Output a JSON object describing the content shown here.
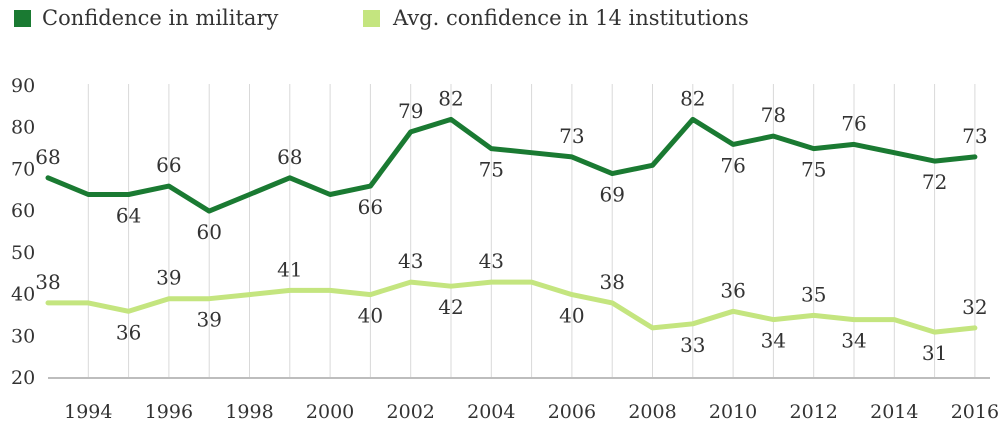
{
  "chart_data": {
    "type": "line",
    "title": "",
    "xlabel": "",
    "ylabel": "",
    "ylim": [
      20,
      90
    ],
    "yticks": [
      20,
      30,
      40,
      50,
      60,
      70,
      80,
      90
    ],
    "xticks": [
      1994,
      1996,
      1998,
      2000,
      2002,
      2004,
      2006,
      2008,
      2010,
      2012,
      2014,
      2016
    ],
    "xlim": [
      1993,
      2016.2
    ],
    "grid": "vertical",
    "legend_placement": "top-left",
    "series": [
      {
        "name": "Confidence in military",
        "color": "#1a7a32",
        "points": [
          {
            "x": 1993,
            "y": 68,
            "label": "68",
            "label_pos": "above"
          },
          {
            "x": 1994,
            "y": 64
          },
          {
            "x": 1995,
            "y": 64,
            "label": "64",
            "label_pos": "below"
          },
          {
            "x": 1996,
            "y": 66,
            "label": "66",
            "label_pos": "above"
          },
          {
            "x": 1997,
            "y": 60,
            "label": "60",
            "label_pos": "below"
          },
          {
            "x": 1998,
            "y": 64
          },
          {
            "x": 1999,
            "y": 68,
            "label": "68",
            "label_pos": "above"
          },
          {
            "x": 2000,
            "y": 64
          },
          {
            "x": 2001,
            "y": 66,
            "label": "66",
            "label_pos": "below"
          },
          {
            "x": 2002,
            "y": 79,
            "label": "79",
            "label_pos": "above"
          },
          {
            "x": 2003,
            "y": 82,
            "label": "82",
            "label_pos": "above"
          },
          {
            "x": 2004,
            "y": 75,
            "label": "75",
            "label_pos": "below"
          },
          {
            "x": 2005,
            "y": 74
          },
          {
            "x": 2006,
            "y": 73,
            "label": "73",
            "label_pos": "above"
          },
          {
            "x": 2007,
            "y": 69,
            "label": "69",
            "label_pos": "below"
          },
          {
            "x": 2008,
            "y": 71
          },
          {
            "x": 2009,
            "y": 82,
            "label": "82",
            "label_pos": "above"
          },
          {
            "x": 2010,
            "y": 76,
            "label": "76",
            "label_pos": "below"
          },
          {
            "x": 2011,
            "y": 78,
            "label": "78",
            "label_pos": "above"
          },
          {
            "x": 2012,
            "y": 75,
            "label": "75",
            "label_pos": "below"
          },
          {
            "x": 2013,
            "y": 76,
            "label": "76",
            "label_pos": "above"
          },
          {
            "x": 2014,
            "y": 74
          },
          {
            "x": 2015,
            "y": 72,
            "label": "72",
            "label_pos": "below"
          },
          {
            "x": 2016,
            "y": 73,
            "label": "73",
            "label_pos": "above"
          }
        ]
      },
      {
        "name": "Avg. confidence in 14 institutions",
        "color": "#c4e57f",
        "points": [
          {
            "x": 1993,
            "y": 38,
            "label": "38",
            "label_pos": "above"
          },
          {
            "x": 1994,
            "y": 38
          },
          {
            "x": 1995,
            "y": 36,
            "label": "36",
            "label_pos": "below"
          },
          {
            "x": 1996,
            "y": 39,
            "label": "39",
            "label_pos": "above"
          },
          {
            "x": 1997,
            "y": 39,
            "label": "39",
            "label_pos": "below"
          },
          {
            "x": 1998,
            "y": 40
          },
          {
            "x": 1999,
            "y": 41,
            "label": "41",
            "label_pos": "above"
          },
          {
            "x": 2000,
            "y": 41
          },
          {
            "x": 2001,
            "y": 40,
            "label": "40",
            "label_pos": "below"
          },
          {
            "x": 2002,
            "y": 43,
            "label": "43",
            "label_pos": "above"
          },
          {
            "x": 2003,
            "y": 42,
            "label": "42",
            "label_pos": "below"
          },
          {
            "x": 2004,
            "y": 43,
            "label": "43",
            "label_pos": "above"
          },
          {
            "x": 2005,
            "y": 43
          },
          {
            "x": 2006,
            "y": 40,
            "label": "40",
            "label_pos": "below"
          },
          {
            "x": 2007,
            "y": 38,
            "label": "38",
            "label_pos": "above"
          },
          {
            "x": 2008,
            "y": 32
          },
          {
            "x": 2009,
            "y": 33,
            "label": "33",
            "label_pos": "below"
          },
          {
            "x": 2010,
            "y": 36,
            "label": "36",
            "label_pos": "above"
          },
          {
            "x": 2011,
            "y": 34,
            "label": "34",
            "label_pos": "below"
          },
          {
            "x": 2012,
            "y": 35,
            "label": "35",
            "label_pos": "above"
          },
          {
            "x": 2013,
            "y": 34,
            "label": "34",
            "label_pos": "below"
          },
          {
            "x": 2014,
            "y": 34
          },
          {
            "x": 2015,
            "y": 31,
            "label": "31",
            "label_pos": "below"
          },
          {
            "x": 2016,
            "y": 32,
            "label": "32",
            "label_pos": "above"
          }
        ]
      }
    ]
  }
}
